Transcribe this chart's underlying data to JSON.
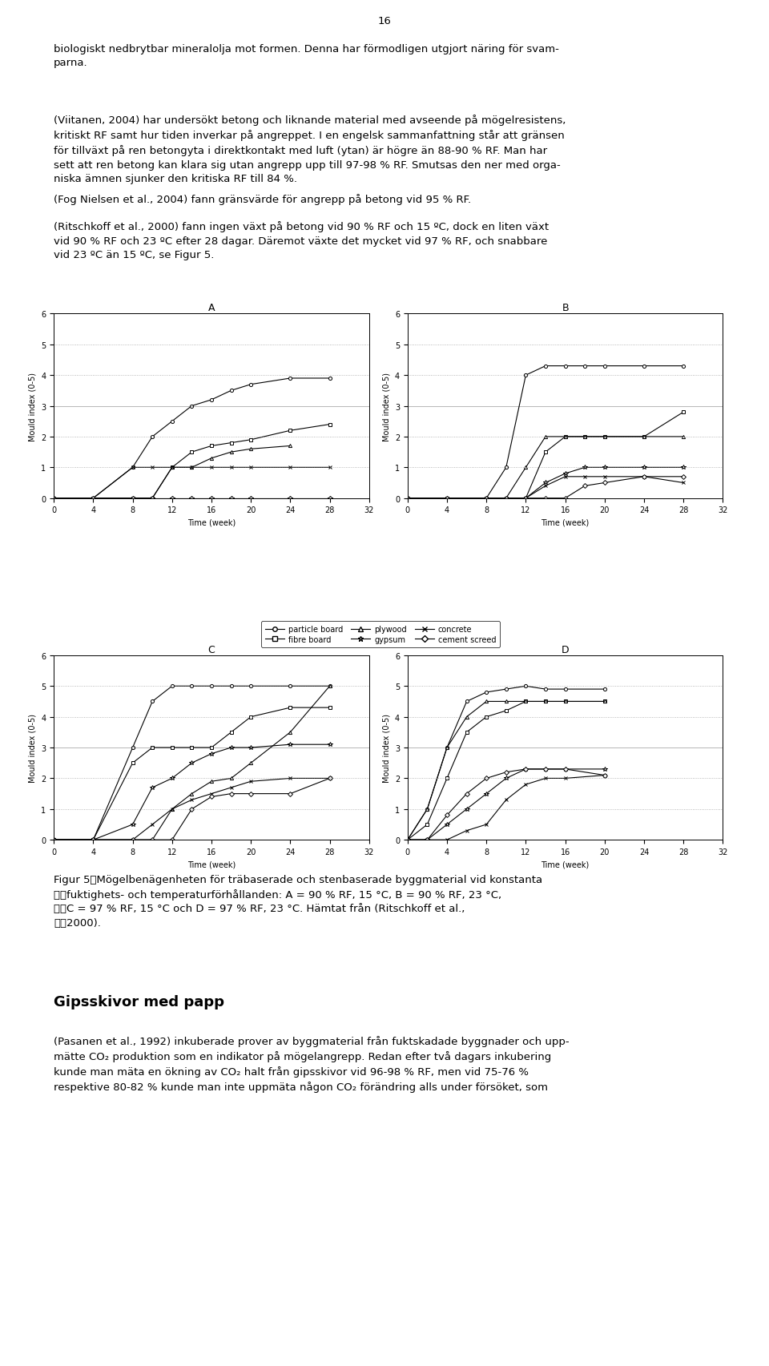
{
  "page_number": "16",
  "background_color": "#ffffff",
  "text_color": "#000000",
  "paragraphs": [
    "biologiskt nedbrytbar mineralolja mot formen. Denna har förmodligen utgjort näring för svam-\nparna.",
    "(Viitanen, 2004) har undersökt betong och liknande material med avseende på mögelresistens,\nkritiskt RF samt hur tiden inverkar på angreppet. I en engelsk sammanfattning står att gränsen\nför tillväxt på ren betongyta i direktkontakt med luft (ytan) är högre än 88-90 % RF. Man har\nsett att ren betong kan klara sig utan angrepp upp till 97-98 % RF. Smutsas den ner med orga-\nniska ämnen sjunker den kritiska RF till 84 %.",
    "(Fog Nielsen et al., 2004) fann gränsvärde för angrepp på betong vid 95 % RF.",
    "(Ritschkoff et al., 2000) fann ingen växt på betong vid 90 % RF och 15 ºC, dock en liten växt\nvid 90 % RF och 23 ºC efter 28 dagar. Däremot växte det mycket vid 97 % RF, och snabbare\nvid 23 ºC än 15 ºC, se Figur 5."
  ],
  "subplot_titles": [
    "A",
    "B",
    "C",
    "D"
  ],
  "chart_A": {
    "series": {
      "particle_board": {
        "x": [
          0,
          4,
          8,
          10,
          12,
          14,
          16,
          18,
          20,
          24,
          28
        ],
        "y": [
          0,
          0,
          1,
          2,
          2.5,
          3,
          3.2,
          3.5,
          3.7,
          3.9,
          3.9
        ]
      },
      "fibre_board": {
        "x": [
          0,
          4,
          8,
          10,
          12,
          14,
          16,
          18,
          20,
          24,
          28
        ],
        "y": [
          0,
          0,
          0,
          0,
          1,
          1.5,
          1.7,
          1.8,
          1.9,
          2.2,
          2.4
        ]
      },
      "plywood": {
        "x": [
          0,
          4,
          8,
          10,
          12,
          14,
          16,
          18,
          20,
          24
        ],
        "y": [
          0,
          0,
          0,
          0,
          1,
          1,
          1.3,
          1.5,
          1.6,
          1.7
        ]
      },
      "gypsum": {
        "x": [
          0,
          4,
          8,
          10,
          12,
          14,
          16,
          18,
          20,
          24,
          28
        ],
        "y": [
          0,
          0,
          0,
          0,
          0,
          0,
          0,
          0,
          0,
          0,
          0
        ]
      },
      "concrete": {
        "x": [
          0,
          4,
          8,
          10,
          12,
          14,
          16,
          18,
          20,
          24,
          28
        ],
        "y": [
          0,
          0,
          1,
          1,
          1,
          1,
          1,
          1,
          1,
          1,
          1
        ]
      },
      "cement_screed": {
        "x": [
          0,
          4,
          8,
          10,
          12,
          14,
          16,
          18,
          20,
          24,
          28
        ],
        "y": [
          0,
          0,
          0,
          0,
          0,
          0,
          0,
          0,
          0,
          0,
          0
        ]
      }
    }
  },
  "chart_B": {
    "series": {
      "particle_board": {
        "x": [
          0,
          4,
          8,
          10,
          12,
          14,
          16,
          18,
          20,
          24,
          28
        ],
        "y": [
          0,
          0,
          0,
          1,
          4,
          4.3,
          4.3,
          4.3,
          4.3,
          4.3,
          4.3
        ]
      },
      "fibre_board": {
        "x": [
          0,
          4,
          8,
          10,
          12,
          14,
          16,
          18,
          20,
          24,
          28
        ],
        "y": [
          0,
          0,
          0,
          0,
          0,
          1.5,
          2,
          2,
          2,
          2,
          2.8
        ]
      },
      "plywood": {
        "x": [
          0,
          4,
          8,
          10,
          12,
          14,
          16,
          18,
          20,
          24,
          28
        ],
        "y": [
          0,
          0,
          0,
          0,
          1,
          2,
          2,
          2,
          2,
          2,
          2
        ]
      },
      "gypsum": {
        "x": [
          0,
          4,
          8,
          10,
          12,
          14,
          16,
          18,
          20,
          24,
          28
        ],
        "y": [
          0,
          0,
          0,
          0,
          0,
          0.5,
          0.8,
          1,
          1,
          1,
          1
        ]
      },
      "concrete": {
        "x": [
          0,
          4,
          8,
          10,
          12,
          14,
          16,
          18,
          20,
          24,
          28
        ],
        "y": [
          0,
          0,
          0,
          0,
          0,
          0.4,
          0.7,
          0.7,
          0.7,
          0.7,
          0.5
        ]
      },
      "cement_screed": {
        "x": [
          0,
          4,
          8,
          10,
          12,
          14,
          16,
          18,
          20,
          24,
          28
        ],
        "y": [
          0,
          0,
          0,
          0,
          0,
          0,
          0,
          0.4,
          0.5,
          0.7,
          0.7
        ]
      }
    }
  },
  "chart_C": {
    "series": {
      "particle_board": {
        "x": [
          0,
          4,
          8,
          10,
          12,
          14,
          16,
          18,
          20,
          24,
          28
        ],
        "y": [
          0,
          0,
          3,
          4.5,
          5,
          5,
          5,
          5,
          5,
          5,
          5
        ]
      },
      "fibre_board": {
        "x": [
          0,
          4,
          8,
          10,
          12,
          14,
          16,
          18,
          20,
          24,
          28
        ],
        "y": [
          0,
          0,
          2.5,
          3,
          3,
          3,
          3,
          3.5,
          4,
          4.3,
          4.3
        ]
      },
      "plywood": {
        "x": [
          0,
          4,
          8,
          10,
          12,
          14,
          16,
          18,
          20,
          24,
          28
        ],
        "y": [
          0,
          0,
          0,
          0,
          1,
          1.5,
          1.9,
          2,
          2.5,
          3.5,
          5
        ]
      },
      "gypsum": {
        "x": [
          0,
          4,
          8,
          10,
          12,
          14,
          16,
          18,
          20,
          24,
          28
        ],
        "y": [
          0,
          0,
          0.5,
          1.7,
          2,
          2.5,
          2.8,
          3,
          3,
          3.1,
          3.1
        ]
      },
      "concrete": {
        "x": [
          0,
          4,
          8,
          10,
          12,
          14,
          16,
          18,
          20,
          24,
          28
        ],
        "y": [
          0,
          0,
          0,
          0.5,
          1,
          1.3,
          1.5,
          1.7,
          1.9,
          2,
          2
        ]
      },
      "cement_screed": {
        "x": [
          0,
          4,
          8,
          10,
          12,
          14,
          16,
          18,
          20,
          24,
          28
        ],
        "y": [
          0,
          0,
          0,
          0,
          0,
          1,
          1.4,
          1.5,
          1.5,
          1.5,
          2
        ]
      }
    }
  },
  "chart_D": {
    "series": {
      "particle_board": {
        "x": [
          0,
          2,
          4,
          6,
          8,
          10,
          12,
          14,
          16,
          20
        ],
        "y": [
          0,
          1,
          3,
          4.5,
          4.8,
          4.9,
          5,
          4.9,
          4.9,
          4.9
        ]
      },
      "fibre_board": {
        "x": [
          0,
          2,
          4,
          6,
          8,
          10,
          12,
          14,
          16,
          20
        ],
        "y": [
          0,
          0.5,
          2,
          3.5,
          4,
          4.2,
          4.5,
          4.5,
          4.5,
          4.5
        ]
      },
      "plywood": {
        "x": [
          0,
          2,
          4,
          6,
          8,
          10,
          12,
          14,
          16,
          20
        ],
        "y": [
          0,
          1,
          3,
          4,
          4.5,
          4.5,
          4.5,
          4.5,
          4.5,
          4.5
        ]
      },
      "gypsum": {
        "x": [
          0,
          2,
          4,
          6,
          8,
          10,
          12,
          14,
          16,
          20
        ],
        "y": [
          0,
          0,
          0.5,
          1,
          1.5,
          2,
          2.3,
          2.3,
          2.3,
          2.3
        ]
      },
      "concrete": {
        "x": [
          0,
          2,
          4,
          6,
          8,
          10,
          12,
          14,
          16,
          20
        ],
        "y": [
          0,
          0,
          0,
          0.3,
          0.5,
          1.3,
          1.8,
          2,
          2,
          2.1
        ]
      },
      "cement_screed": {
        "x": [
          0,
          2,
          4,
          6,
          8,
          10,
          12,
          14,
          16,
          20
        ],
        "y": [
          0,
          0,
          0.8,
          1.5,
          2,
          2.2,
          2.3,
          2.3,
          2.3,
          2.1
        ]
      }
    }
  }
}
